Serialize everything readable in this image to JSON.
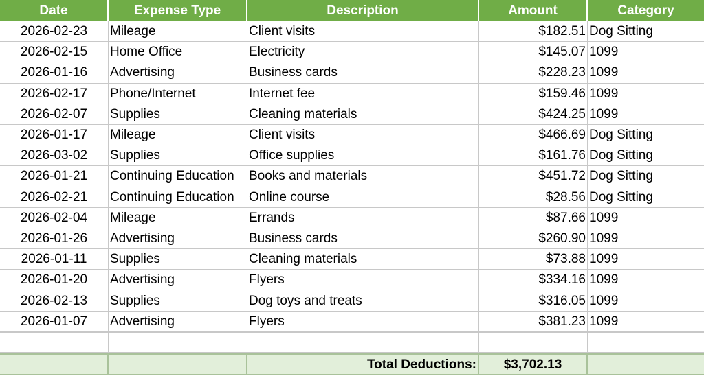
{
  "headers": {
    "date": "Date",
    "type": "Expense Type",
    "desc": "Description",
    "amount": "Amount",
    "category": "Category"
  },
  "rows": [
    {
      "date": "2026-02-23",
      "type": "Mileage",
      "desc": "Client visits",
      "amount": "$182.51",
      "category": "Dog Sitting"
    },
    {
      "date": "2026-02-15",
      "type": "Home Office",
      "desc": "Electricity",
      "amount": "$145.07",
      "category": "1099"
    },
    {
      "date": "2026-01-16",
      "type": "Advertising",
      "desc": "Business cards",
      "amount": "$228.23",
      "category": "1099"
    },
    {
      "date": "2026-02-17",
      "type": "Phone/Internet",
      "desc": "Internet fee",
      "amount": "$159.46",
      "category": "1099"
    },
    {
      "date": "2026-02-07",
      "type": "Supplies",
      "desc": "Cleaning materials",
      "amount": "$424.25",
      "category": "1099"
    },
    {
      "date": "2026-01-17",
      "type": "Mileage",
      "desc": "Client visits",
      "amount": "$466.69",
      "category": "Dog Sitting"
    },
    {
      "date": "2026-03-02",
      "type": "Supplies",
      "desc": "Office supplies",
      "amount": "$161.76",
      "category": "Dog Sitting"
    },
    {
      "date": "2026-01-21",
      "type": "Continuing Education",
      "desc": "Books and materials",
      "amount": "$451.72",
      "category": "Dog Sitting"
    },
    {
      "date": "2026-02-21",
      "type": "Continuing Education",
      "desc": "Online course",
      "amount": "$28.56",
      "category": "Dog Sitting"
    },
    {
      "date": "2026-02-04",
      "type": "Mileage",
      "desc": "Errands",
      "amount": "$87.66",
      "category": "1099"
    },
    {
      "date": "2026-01-26",
      "type": "Advertising",
      "desc": "Business cards",
      "amount": "$260.90",
      "category": "1099"
    },
    {
      "date": "2026-01-11",
      "type": "Supplies",
      "desc": "Cleaning materials",
      "amount": "$73.88",
      "category": "1099"
    },
    {
      "date": "2026-01-20",
      "type": "Advertising",
      "desc": "Flyers",
      "amount": "$334.16",
      "category": "1099"
    },
    {
      "date": "2026-02-13",
      "type": "Supplies",
      "desc": "Dog toys and treats",
      "amount": "$316.05",
      "category": "1099"
    },
    {
      "date": "2026-01-07",
      "type": "Advertising",
      "desc": "Flyers",
      "amount": "$381.23",
      "category": "1099"
    }
  ],
  "total": {
    "label": "Total Deductions:",
    "value": "$3,702.13"
  },
  "colors": {
    "header_bg": "#70ad47",
    "header_text": "#ffffff",
    "total_bg": "#e2efda",
    "grid": "#c8c8c8"
  }
}
